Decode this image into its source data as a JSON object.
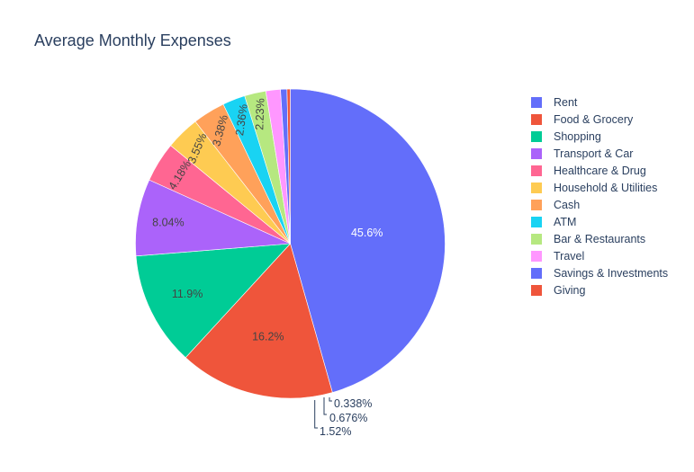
{
  "chart_data": {
    "type": "pie",
    "title": "Average Monthly Expenses",
    "categories": [
      "Rent",
      "Food & Grocery",
      "Shopping",
      "Transport & Car",
      "Healthcare & Drug",
      "Household & Utilities",
      "Cash",
      "ATM",
      "Bar & Restaurants",
      "Travel",
      "Savings & Investments",
      "Giving"
    ],
    "values": [
      45.6,
      16.2,
      11.9,
      8.04,
      4.18,
      3.55,
      3.38,
      2.36,
      2.23,
      1.52,
      0.676,
      0.338
    ],
    "labels": [
      "45.6%",
      "16.2%",
      "11.9%",
      "8.04%",
      "4.18%",
      "3.55%",
      "3.38%",
      "2.36%",
      "2.23%",
      "1.52%",
      "0.676%",
      "0.338%"
    ],
    "colors": [
      "#636efa",
      "#EF553B",
      "#00cc96",
      "#ab63fa",
      "#FF6692",
      "#FECB52",
      "#FFA15A",
      "#19d3f3",
      "#B6E880",
      "#FF97FF",
      "#636efa",
      "#EF553B"
    ],
    "legend_position": "right",
    "sort": "descending",
    "direction": "clockwise",
    "start": "top"
  }
}
